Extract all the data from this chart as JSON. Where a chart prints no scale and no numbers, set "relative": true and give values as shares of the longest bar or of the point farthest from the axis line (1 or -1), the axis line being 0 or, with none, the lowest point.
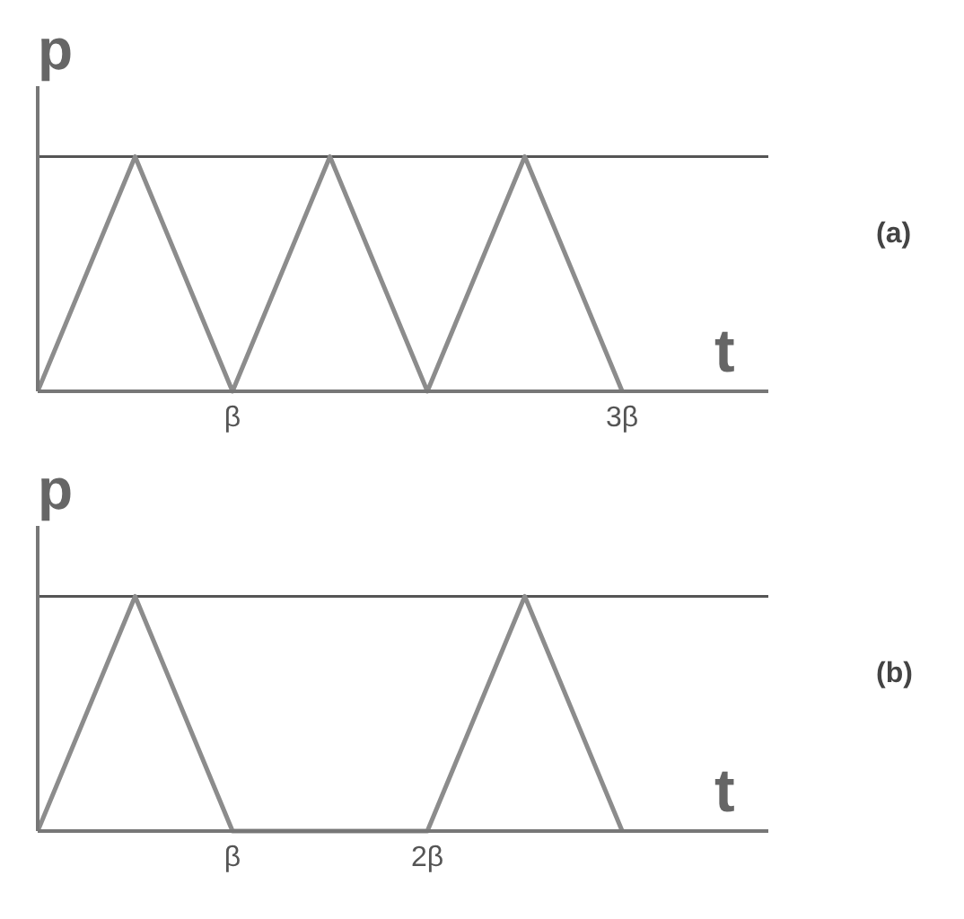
{
  "chart_data": [
    {
      "type": "line",
      "xlabel": "t",
      "ylabel": "p",
      "annotations": [
        "(a)"
      ],
      "relative": true,
      "categories": [
        null,
        null,
        "β",
        null,
        null,
        null,
        "3β",
        null
      ],
      "series": [
        {
          "color": "#8c8c8c",
          "values": [
            0,
            1,
            0,
            1,
            0,
            1,
            0,
            null
          ]
        }
      ],
      "ref_lines": [
        {
          "axis": "y",
          "value": 1,
          "color": "#555555"
        }
      ]
    },
    {
      "type": "line",
      "xlabel": "t",
      "ylabel": "p",
      "annotations": [
        "(b)"
      ],
      "relative": true,
      "categories": [
        null,
        null,
        "β",
        null,
        "2β",
        null,
        null,
        null
      ],
      "series": [
        {
          "color": "#8c8c8c",
          "values": [
            0,
            1,
            0,
            0,
            0,
            1,
            0,
            null
          ]
        }
      ],
      "ref_lines": [
        {
          "axis": "y",
          "value": 1,
          "color": "#555555"
        }
      ]
    }
  ]
}
